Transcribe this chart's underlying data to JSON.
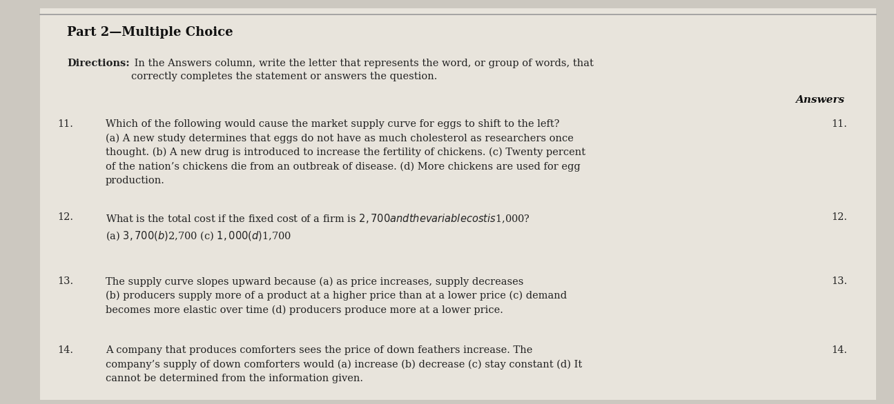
{
  "bg_color": "#ccc8c0",
  "paper_color": "#e8e4dc",
  "title": "Part 2—Multiple Choice",
  "directions_bold": "Directions:",
  "directions_rest": " In the Answers column, write the letter that represents the word, or group of words, that\ncorrectly completes the statement or answers the question.",
  "answers_label": "Answers",
  "questions": [
    {
      "number": "11.",
      "text": "Which of the following would cause the market supply curve for eggs to shift to the left?\n(a) A new study determines that eggs do not have as much cholesterol as researchers once\nthought. (b) A new drug is introduced to increase the fertility of chickens. (c) Twenty percent\nof the nation’s chickens die from an outbreak of disease. (d) More chickens are used for egg\nproduction.",
      "answer_num": "11."
    },
    {
      "number": "12.",
      "text": "What is the total cost if the fixed cost of a firm is $2,700 and the variable cost is $1,000?\n(a) $3,700 (b) $2,700 (c) $1,000 (d) $1,700",
      "answer_num": "12."
    },
    {
      "number": "13.",
      "text": "The supply curve slopes upward because (a) as price increases, supply decreases\n(b) producers supply more of a product at a higher price than at a lower price (c) demand\nbecomes more elastic over time (d) producers produce more at a lower price.",
      "answer_num": "13."
    },
    {
      "number": "14.",
      "text": "A company that produces comforters sees the price of down feathers increase. The\ncompany’s supply of down comforters would (a) increase (b) decrease (c) stay constant (d) It\ncannot be determined from the information given.",
      "answer_num": "14."
    }
  ],
  "figsize": [
    12.95,
    5.86
  ],
  "dpi": 100
}
